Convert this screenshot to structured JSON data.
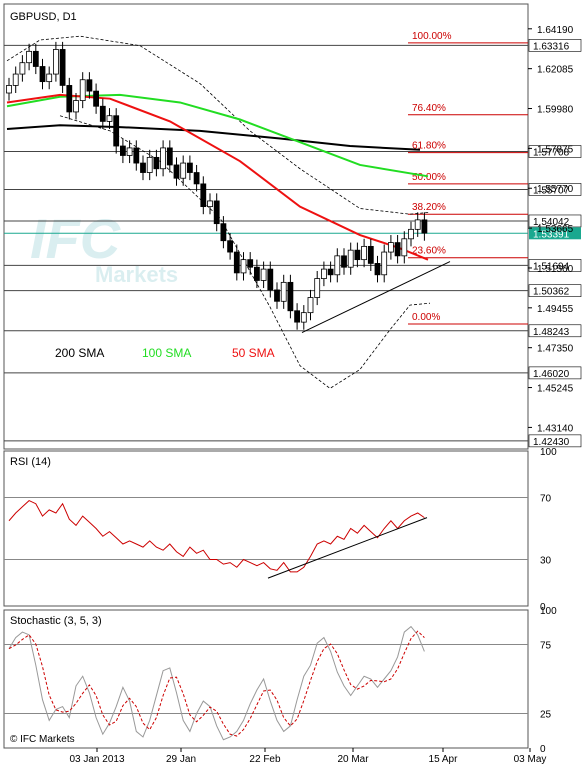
{
  "chart_data": [
    {
      "type": "candlestick",
      "title": "GBPUSD, D1",
      "y_ticks": [
        "1.64190",
        "1.62085",
        "1.59980",
        "1.57875",
        "1.55770",
        "1.53665",
        "1.51560",
        "1.49455",
        "1.47350",
        "1.45245",
        "1.43140"
      ],
      "h_levels": [
        {
          "value": 1.63316,
          "label": "1.63316"
        },
        {
          "value": 1.57708,
          "label": "1.57708"
        },
        {
          "value": 1.55707,
          "label": "1.55707"
        },
        {
          "value": 1.54042,
          "label": "1.54042"
        },
        {
          "value": 1.51694,
          "label": "1.51694"
        },
        {
          "value": 1.50362,
          "label": "1.50362"
        },
        {
          "value": 1.48243,
          "label": "1.48243"
        },
        {
          "value": 1.4602,
          "label": "1.46020"
        },
        {
          "value": 1.4243,
          "label": "1.42430"
        }
      ],
      "current_price": {
        "value": 1.53391,
        "label": "1.53391",
        "color": "#1aa88f"
      },
      "fibonacci": [
        {
          "label": "100.00%",
          "value": 1.6345
        },
        {
          "label": "76.40%",
          "value": 1.5965
        },
        {
          "label": "61.80%",
          "value": 1.5765
        },
        {
          "label": "50.00%",
          "value": 1.56
        },
        {
          "label": "38.20%",
          "value": 1.544
        },
        {
          "label": "23.60%",
          "value": 1.521
        },
        {
          "label": "0.00%",
          "value": 1.486
        }
      ],
      "legend": [
        {
          "name": "200 SMA",
          "color": "#000000"
        },
        {
          "name": "100 SMA",
          "color": "#22dd22"
        },
        {
          "name": "50 SMA",
          "color": "#ee1111"
        }
      ],
      "ylim": [
        1.42,
        1.655
      ]
    },
    {
      "type": "line",
      "title": "RSI (14)",
      "y_ticks": [
        "100",
        "70",
        "30",
        "0"
      ],
      "ylim": [
        0,
        100
      ],
      "levels": [
        70,
        30
      ]
    },
    {
      "type": "line",
      "title": "Stochastic (3, 5, 3)",
      "y_ticks": [
        "100",
        "75",
        "25",
        "0"
      ],
      "ylim": [
        0,
        100
      ],
      "levels": [
        75,
        25
      ]
    }
  ],
  "x_labels": [
    "03 Jan 2013",
    "29 Jan",
    "22 Feb",
    "20 Mar",
    "15 Apr",
    "03 May"
  ],
  "watermark": {
    "top": "IFC",
    "bottom": "Markets"
  },
  "copyright": "© IFC Markets",
  "colors": {
    "up": "#ffffff",
    "down": "#000000",
    "grid": "#888888",
    "fib": "#cc0000"
  }
}
